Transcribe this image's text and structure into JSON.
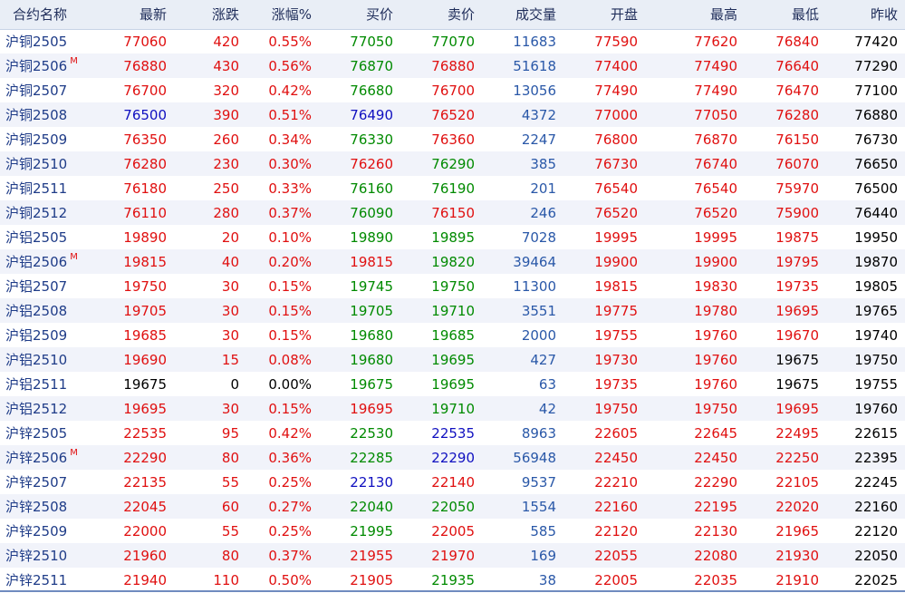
{
  "colors": {
    "up": "#e01010",
    "down": "#1010c0",
    "buy": "#008a00",
    "volume": "#2a58a8",
    "flat": "#000000",
    "name": "#1f3c88",
    "header_bg": "#e9eef6",
    "row_alt": "#f1f3fa"
  },
  "columns": [
    {
      "key": "name",
      "label": "合约名称"
    },
    {
      "key": "last",
      "label": "最新"
    },
    {
      "key": "chg",
      "label": "涨跌"
    },
    {
      "key": "pct",
      "label": "涨幅%"
    },
    {
      "key": "bid",
      "label": "买价"
    },
    {
      "key": "ask",
      "label": "卖价"
    },
    {
      "key": "vol",
      "label": "成交量"
    },
    {
      "key": "open",
      "label": "开盘"
    },
    {
      "key": "high",
      "label": "最高"
    },
    {
      "key": "low",
      "label": "最低"
    },
    {
      "key": "prev",
      "label": "昨收"
    }
  ],
  "rows": [
    {
      "name": "沪铜2505",
      "m": false,
      "last": "77060",
      "chg": "420",
      "pct": "0.55%",
      "bid": "77050",
      "ask": "77070",
      "vol": "11683",
      "open": "77590",
      "high": "77620",
      "low": "76840",
      "prev": "77420",
      "c": {
        "last": "up",
        "chg": "up",
        "pct": "up",
        "bid": "buy",
        "ask": "buy",
        "open": "up",
        "high": "up",
        "low": "up"
      }
    },
    {
      "name": "沪铜2506",
      "m": true,
      "last": "76880",
      "chg": "430",
      "pct": "0.56%",
      "bid": "76870",
      "ask": "76880",
      "vol": "51618",
      "open": "77400",
      "high": "77490",
      "low": "76640",
      "prev": "77290",
      "c": {
        "last": "up",
        "chg": "up",
        "pct": "up",
        "bid": "buy",
        "ask": "up",
        "open": "up",
        "high": "up",
        "low": "up"
      }
    },
    {
      "name": "沪铜2507",
      "m": false,
      "last": "76700",
      "chg": "320",
      "pct": "0.42%",
      "bid": "76680",
      "ask": "76700",
      "vol": "13056",
      "open": "77490",
      "high": "77490",
      "low": "76470",
      "prev": "77100",
      "c": {
        "last": "up",
        "chg": "up",
        "pct": "up",
        "bid": "buy",
        "ask": "up",
        "open": "up",
        "high": "up",
        "low": "up"
      }
    },
    {
      "name": "沪铜2508",
      "m": false,
      "last": "76500",
      "chg": "390",
      "pct": "0.51%",
      "bid": "76490",
      "ask": "76520",
      "vol": "4372",
      "open": "77000",
      "high": "77050",
      "low": "76280",
      "prev": "76880",
      "c": {
        "last": "down",
        "chg": "up",
        "pct": "up",
        "bid": "down",
        "ask": "up",
        "open": "up",
        "high": "up",
        "low": "up"
      }
    },
    {
      "name": "沪铜2509",
      "m": false,
      "last": "76350",
      "chg": "260",
      "pct": "0.34%",
      "bid": "76330",
      "ask": "76360",
      "vol": "2247",
      "open": "76800",
      "high": "76870",
      "low": "76150",
      "prev": "76730",
      "c": {
        "last": "up",
        "chg": "up",
        "pct": "up",
        "bid": "buy",
        "ask": "up",
        "open": "up",
        "high": "up",
        "low": "up"
      }
    },
    {
      "name": "沪铜2510",
      "m": false,
      "last": "76280",
      "chg": "230",
      "pct": "0.30%",
      "bid": "76260",
      "ask": "76290",
      "vol": "385",
      "open": "76730",
      "high": "76740",
      "low": "76070",
      "prev": "76650",
      "c": {
        "last": "up",
        "chg": "up",
        "pct": "up",
        "bid": "up",
        "ask": "buy",
        "open": "up",
        "high": "up",
        "low": "up"
      }
    },
    {
      "name": "沪铜2511",
      "m": false,
      "last": "76180",
      "chg": "250",
      "pct": "0.33%",
      "bid": "76160",
      "ask": "76190",
      "vol": "201",
      "open": "76540",
      "high": "76540",
      "low": "75970",
      "prev": "76500",
      "c": {
        "last": "up",
        "chg": "up",
        "pct": "up",
        "bid": "buy",
        "ask": "buy",
        "open": "up",
        "high": "up",
        "low": "up"
      }
    },
    {
      "name": "沪铜2512",
      "m": false,
      "last": "76110",
      "chg": "280",
      "pct": "0.37%",
      "bid": "76090",
      "ask": "76150",
      "vol": "246",
      "open": "76520",
      "high": "76520",
      "low": "75900",
      "prev": "76440",
      "c": {
        "last": "up",
        "chg": "up",
        "pct": "up",
        "bid": "buy",
        "ask": "up",
        "open": "up",
        "high": "up",
        "low": "up"
      }
    },
    {
      "name": "沪铝2505",
      "m": false,
      "last": "19890",
      "chg": "20",
      "pct": "0.10%",
      "bid": "19890",
      "ask": "19895",
      "vol": "7028",
      "open": "19995",
      "high": "19995",
      "low": "19875",
      "prev": "19950",
      "c": {
        "last": "up",
        "chg": "up",
        "pct": "up",
        "bid": "buy",
        "ask": "buy",
        "open": "up",
        "high": "up",
        "low": "up"
      }
    },
    {
      "name": "沪铝2506",
      "m": true,
      "last": "19815",
      "chg": "40",
      "pct": "0.20%",
      "bid": "19815",
      "ask": "19820",
      "vol": "39464",
      "open": "19900",
      "high": "19900",
      "low": "19795",
      "prev": "19870",
      "c": {
        "last": "up",
        "chg": "up",
        "pct": "up",
        "bid": "up",
        "ask": "buy",
        "open": "up",
        "high": "up",
        "low": "up"
      }
    },
    {
      "name": "沪铝2507",
      "m": false,
      "last": "19750",
      "chg": "30",
      "pct": "0.15%",
      "bid": "19745",
      "ask": "19750",
      "vol": "11300",
      "open": "19815",
      "high": "19830",
      "low": "19735",
      "prev": "19805",
      "c": {
        "last": "up",
        "chg": "up",
        "pct": "up",
        "bid": "buy",
        "ask": "buy",
        "open": "up",
        "high": "up",
        "low": "up"
      }
    },
    {
      "name": "沪铝2508",
      "m": false,
      "last": "19705",
      "chg": "30",
      "pct": "0.15%",
      "bid": "19705",
      "ask": "19710",
      "vol": "3551",
      "open": "19775",
      "high": "19780",
      "low": "19695",
      "prev": "19765",
      "c": {
        "last": "up",
        "chg": "up",
        "pct": "up",
        "bid": "buy",
        "ask": "buy",
        "open": "up",
        "high": "up",
        "low": "up"
      }
    },
    {
      "name": "沪铝2509",
      "m": false,
      "last": "19685",
      "chg": "30",
      "pct": "0.15%",
      "bid": "19680",
      "ask": "19685",
      "vol": "2000",
      "open": "19755",
      "high": "19760",
      "low": "19670",
      "prev": "19740",
      "c": {
        "last": "up",
        "chg": "up",
        "pct": "up",
        "bid": "buy",
        "ask": "buy",
        "open": "up",
        "high": "up",
        "low": "up"
      }
    },
    {
      "name": "沪铝2510",
      "m": false,
      "last": "19690",
      "chg": "15",
      "pct": "0.08%",
      "bid": "19680",
      "ask": "19695",
      "vol": "427",
      "open": "19730",
      "high": "19760",
      "low": "19675",
      "prev": "19750",
      "c": {
        "last": "up",
        "chg": "up",
        "pct": "up",
        "bid": "buy",
        "ask": "buy",
        "open": "up",
        "high": "up",
        "low": "flat"
      }
    },
    {
      "name": "沪铝2511",
      "m": false,
      "last": "19675",
      "chg": "0",
      "pct": "0.00%",
      "bid": "19675",
      "ask": "19695",
      "vol": "63",
      "open": "19735",
      "high": "19760",
      "low": "19675",
      "prev": "19755",
      "c": {
        "last": "flat",
        "chg": "flat",
        "pct": "flat",
        "bid": "buy",
        "ask": "buy",
        "open": "up",
        "high": "up",
        "low": "flat"
      }
    },
    {
      "name": "沪铝2512",
      "m": false,
      "last": "19695",
      "chg": "30",
      "pct": "0.15%",
      "bid": "19695",
      "ask": "19710",
      "vol": "42",
      "open": "19750",
      "high": "19750",
      "low": "19695",
      "prev": "19760",
      "c": {
        "last": "up",
        "chg": "up",
        "pct": "up",
        "bid": "up",
        "ask": "buy",
        "open": "up",
        "high": "up",
        "low": "up"
      }
    },
    {
      "name": "沪锌2505",
      "m": false,
      "last": "22535",
      "chg": "95",
      "pct": "0.42%",
      "bid": "22530",
      "ask": "22535",
      "vol": "8963",
      "open": "22605",
      "high": "22645",
      "low": "22495",
      "prev": "22615",
      "c": {
        "last": "up",
        "chg": "up",
        "pct": "up",
        "bid": "buy",
        "ask": "down",
        "open": "up",
        "high": "up",
        "low": "up"
      }
    },
    {
      "name": "沪锌2506",
      "m": true,
      "last": "22290",
      "chg": "80",
      "pct": "0.36%",
      "bid": "22285",
      "ask": "22290",
      "vol": "56948",
      "open": "22450",
      "high": "22450",
      "low": "22250",
      "prev": "22395",
      "c": {
        "last": "up",
        "chg": "up",
        "pct": "up",
        "bid": "buy",
        "ask": "down",
        "open": "up",
        "high": "up",
        "low": "up"
      }
    },
    {
      "name": "沪锌2507",
      "m": false,
      "last": "22135",
      "chg": "55",
      "pct": "0.25%",
      "bid": "22130",
      "ask": "22140",
      "vol": "9537",
      "open": "22210",
      "high": "22290",
      "low": "22105",
      "prev": "22245",
      "c": {
        "last": "up",
        "chg": "up",
        "pct": "up",
        "bid": "down",
        "ask": "up",
        "open": "up",
        "high": "up",
        "low": "up"
      }
    },
    {
      "name": "沪锌2508",
      "m": false,
      "last": "22045",
      "chg": "60",
      "pct": "0.27%",
      "bid": "22040",
      "ask": "22050",
      "vol": "1554",
      "open": "22160",
      "high": "22195",
      "low": "22020",
      "prev": "22160",
      "c": {
        "last": "up",
        "chg": "up",
        "pct": "up",
        "bid": "buy",
        "ask": "buy",
        "open": "up",
        "high": "up",
        "low": "up"
      }
    },
    {
      "name": "沪锌2509",
      "m": false,
      "last": "22000",
      "chg": "55",
      "pct": "0.25%",
      "bid": "21995",
      "ask": "22005",
      "vol": "585",
      "open": "22120",
      "high": "22130",
      "low": "21965",
      "prev": "22120",
      "c": {
        "last": "up",
        "chg": "up",
        "pct": "up",
        "bid": "buy",
        "ask": "up",
        "open": "up",
        "high": "up",
        "low": "up"
      }
    },
    {
      "name": "沪锌2510",
      "m": false,
      "last": "21960",
      "chg": "80",
      "pct": "0.37%",
      "bid": "21955",
      "ask": "21970",
      "vol": "169",
      "open": "22055",
      "high": "22080",
      "low": "21930",
      "prev": "22050",
      "c": {
        "last": "up",
        "chg": "up",
        "pct": "up",
        "bid": "up",
        "ask": "up",
        "open": "up",
        "high": "up",
        "low": "up"
      }
    },
    {
      "name": "沪锌2511",
      "m": false,
      "last": "21940",
      "chg": "110",
      "pct": "0.50%",
      "bid": "21905",
      "ask": "21935",
      "vol": "38",
      "open": "22005",
      "high": "22035",
      "low": "21910",
      "prev": "22025",
      "c": {
        "last": "up",
        "chg": "up",
        "pct": "up",
        "bid": "up",
        "ask": "buy",
        "open": "up",
        "high": "up",
        "low": "up"
      }
    }
  ],
  "m_tag": "M"
}
